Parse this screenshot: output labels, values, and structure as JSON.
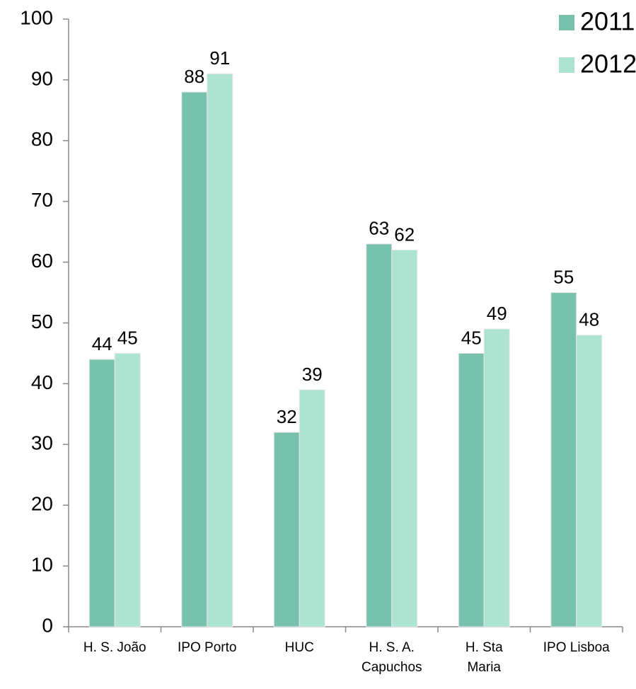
{
  "chart_data": {
    "type": "bar",
    "categories": [
      "H. S. João",
      "IPO Porto",
      "HUC",
      "H. S. A. Capuchos",
      "H. Sta Maria",
      "IPO Lisboa"
    ],
    "series": [
      {
        "name": "2011",
        "color": "#78c2ad",
        "values": [
          44,
          88,
          32,
          63,
          45,
          55
        ]
      },
      {
        "name": "2012",
        "color": "#ade3d1",
        "values": [
          45,
          91,
          39,
          62,
          49,
          48
        ]
      }
    ],
    "ylim": [
      0,
      100
    ],
    "yticks": [
      0,
      10,
      20,
      30,
      40,
      50,
      60,
      70,
      80,
      90,
      100
    ],
    "legend": "top-right"
  }
}
